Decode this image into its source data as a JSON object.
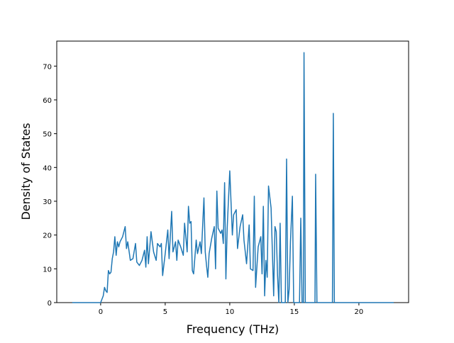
{
  "chart_data": {
    "type": "line",
    "xlabel": "Frequency (THz)",
    "ylabel": "Density of States",
    "xlim": [
      -3.4,
      23.85
    ],
    "ylim": [
      0,
      77.4
    ],
    "xticks": [
      0,
      5,
      10,
      15,
      20
    ],
    "yticks": [
      0,
      10,
      20,
      30,
      40,
      50,
      60,
      70
    ],
    "series": [
      {
        "color": "#1f77b4",
        "x": [
          -2.2,
          0,
          0.2,
          0.3,
          0.4,
          0.5,
          0.6,
          0.7,
          0.8,
          0.9,
          1.0,
          1.1,
          1.2,
          1.3,
          1.4,
          1.5,
          1.7,
          1.9,
          2.0,
          2.1,
          2.3,
          2.5,
          2.7,
          2.8,
          3.0,
          3.2,
          3.4,
          3.5,
          3.6,
          3.7,
          3.9,
          4.1,
          4.3,
          4.4,
          4.6,
          4.7,
          4.8,
          5.0,
          5.2,
          5.3,
          5.5,
          5.6,
          5.8,
          5.9,
          6.0,
          6.2,
          6.4,
          6.5,
          6.7,
          6.8,
          6.9,
          7.0,
          7.1,
          7.2,
          7.4,
          7.5,
          7.7,
          7.8,
          8.0,
          8.1,
          8.2,
          8.3,
          8.4,
          8.6,
          8.8,
          8.9,
          9.0,
          9.1,
          9.3,
          9.4,
          9.5,
          9.6,
          9.7,
          9.8,
          10.0,
          10.2,
          10.3,
          10.5,
          10.6,
          10.8,
          11.0,
          11.1,
          11.3,
          11.5,
          11.6,
          11.8,
          11.9,
          12.0,
          12.2,
          12.4,
          12.5,
          12.6,
          12.7,
          12.8,
          12.9,
          13.0,
          13.2,
          13.3,
          13.4,
          13.5,
          13.6,
          13.7,
          13.8,
          13.9,
          14.0,
          14.3,
          14.4,
          14.5,
          14.6,
          14.7,
          14.85,
          14.95,
          15.4,
          15.5,
          15.6,
          15.7,
          15.75,
          15.85,
          16.6,
          16.65,
          16.75,
          17.95,
          18.02,
          18.1,
          22.7
        ],
        "values": [
          0,
          0,
          2,
          4.5,
          3.5,
          3,
          9.5,
          8.5,
          9,
          13,
          15,
          19.5,
          14,
          18,
          16.5,
          18,
          19.5,
          22.5,
          16,
          18,
          12.5,
          13,
          17.5,
          12,
          11,
          12.5,
          15.5,
          10.5,
          19.5,
          11.5,
          21,
          15,
          12.5,
          17.5,
          16.5,
          17.5,
          8,
          14.5,
          21.5,
          13,
          27,
          15,
          18,
          12.5,
          18.5,
          16.5,
          14,
          23.5,
          15,
          28.5,
          23.5,
          24,
          9.5,
          8.5,
          18.5,
          14.5,
          18,
          14.5,
          31,
          15,
          11,
          7.5,
          14.5,
          19,
          22.5,
          10,
          33,
          22,
          20.5,
          21.5,
          17.5,
          35.5,
          7,
          22,
          39,
          20,
          26,
          27.5,
          16,
          22.5,
          26,
          18.5,
          11.5,
          23,
          10,
          9.5,
          31.5,
          4.5,
          16.5,
          19.5,
          8.5,
          28.5,
          2,
          12.5,
          7.5,
          34.5,
          28,
          15,
          2,
          22.5,
          21,
          8,
          0,
          23.5,
          0,
          0,
          42.5,
          0,
          4,
          18,
          31.5,
          0,
          0,
          25,
          0,
          0,
          74,
          0,
          0,
          38,
          0,
          0,
          56,
          0,
          0
        ]
      }
    ]
  }
}
